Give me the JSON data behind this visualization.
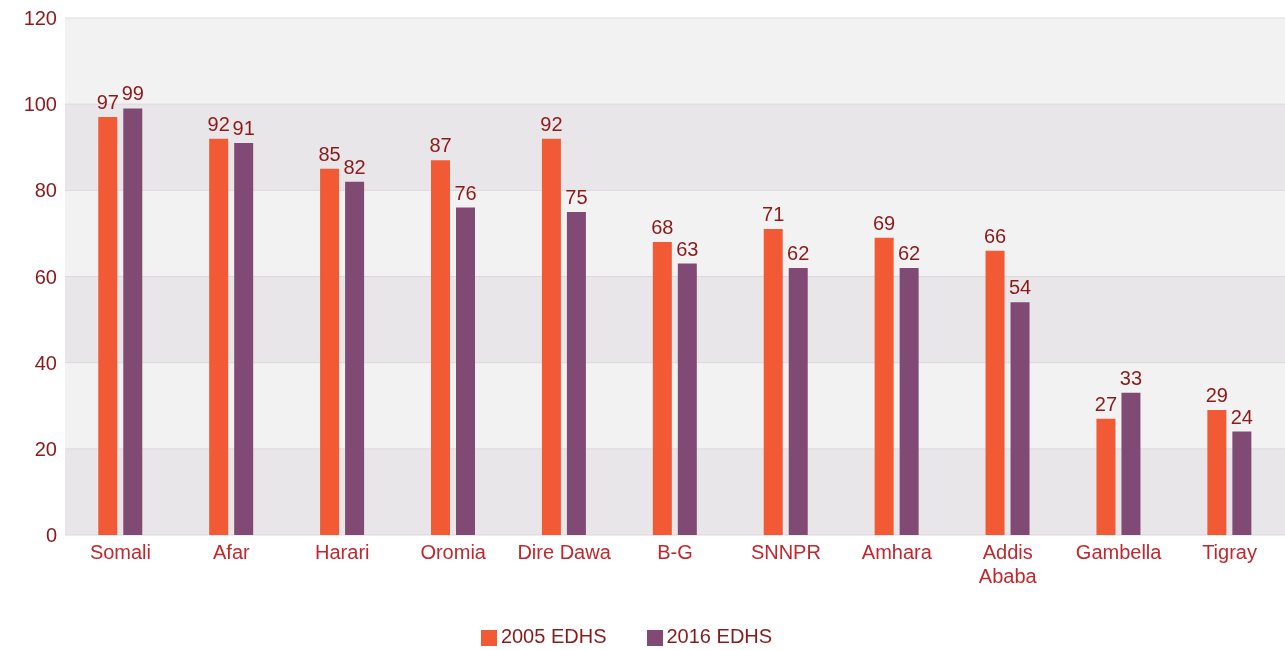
{
  "chart_data": {
    "type": "bar",
    "categories": [
      "Somali",
      "Afar",
      "Harari",
      "Oromia",
      "Dire Dawa",
      "B-G",
      "SNNPR",
      "Amhara",
      "Addis Ababa",
      "Gambella",
      "Tigray"
    ],
    "series": [
      {
        "name": "2005 EDHS",
        "color": "#f15a35",
        "values": [
          97,
          92,
          85,
          87,
          92,
          68,
          71,
          69,
          66,
          27,
          29
        ]
      },
      {
        "name": "2016 EDHS",
        "color": "#804a75",
        "values": [
          99,
          91,
          82,
          76,
          75,
          63,
          62,
          62,
          54,
          33,
          24
        ]
      }
    ],
    "ylim": [
      0,
      120
    ],
    "yticks": [
      0,
      20,
      40,
      60,
      80,
      100,
      120
    ],
    "grid": "y",
    "legend": "bottom",
    "data_labels": true
  }
}
